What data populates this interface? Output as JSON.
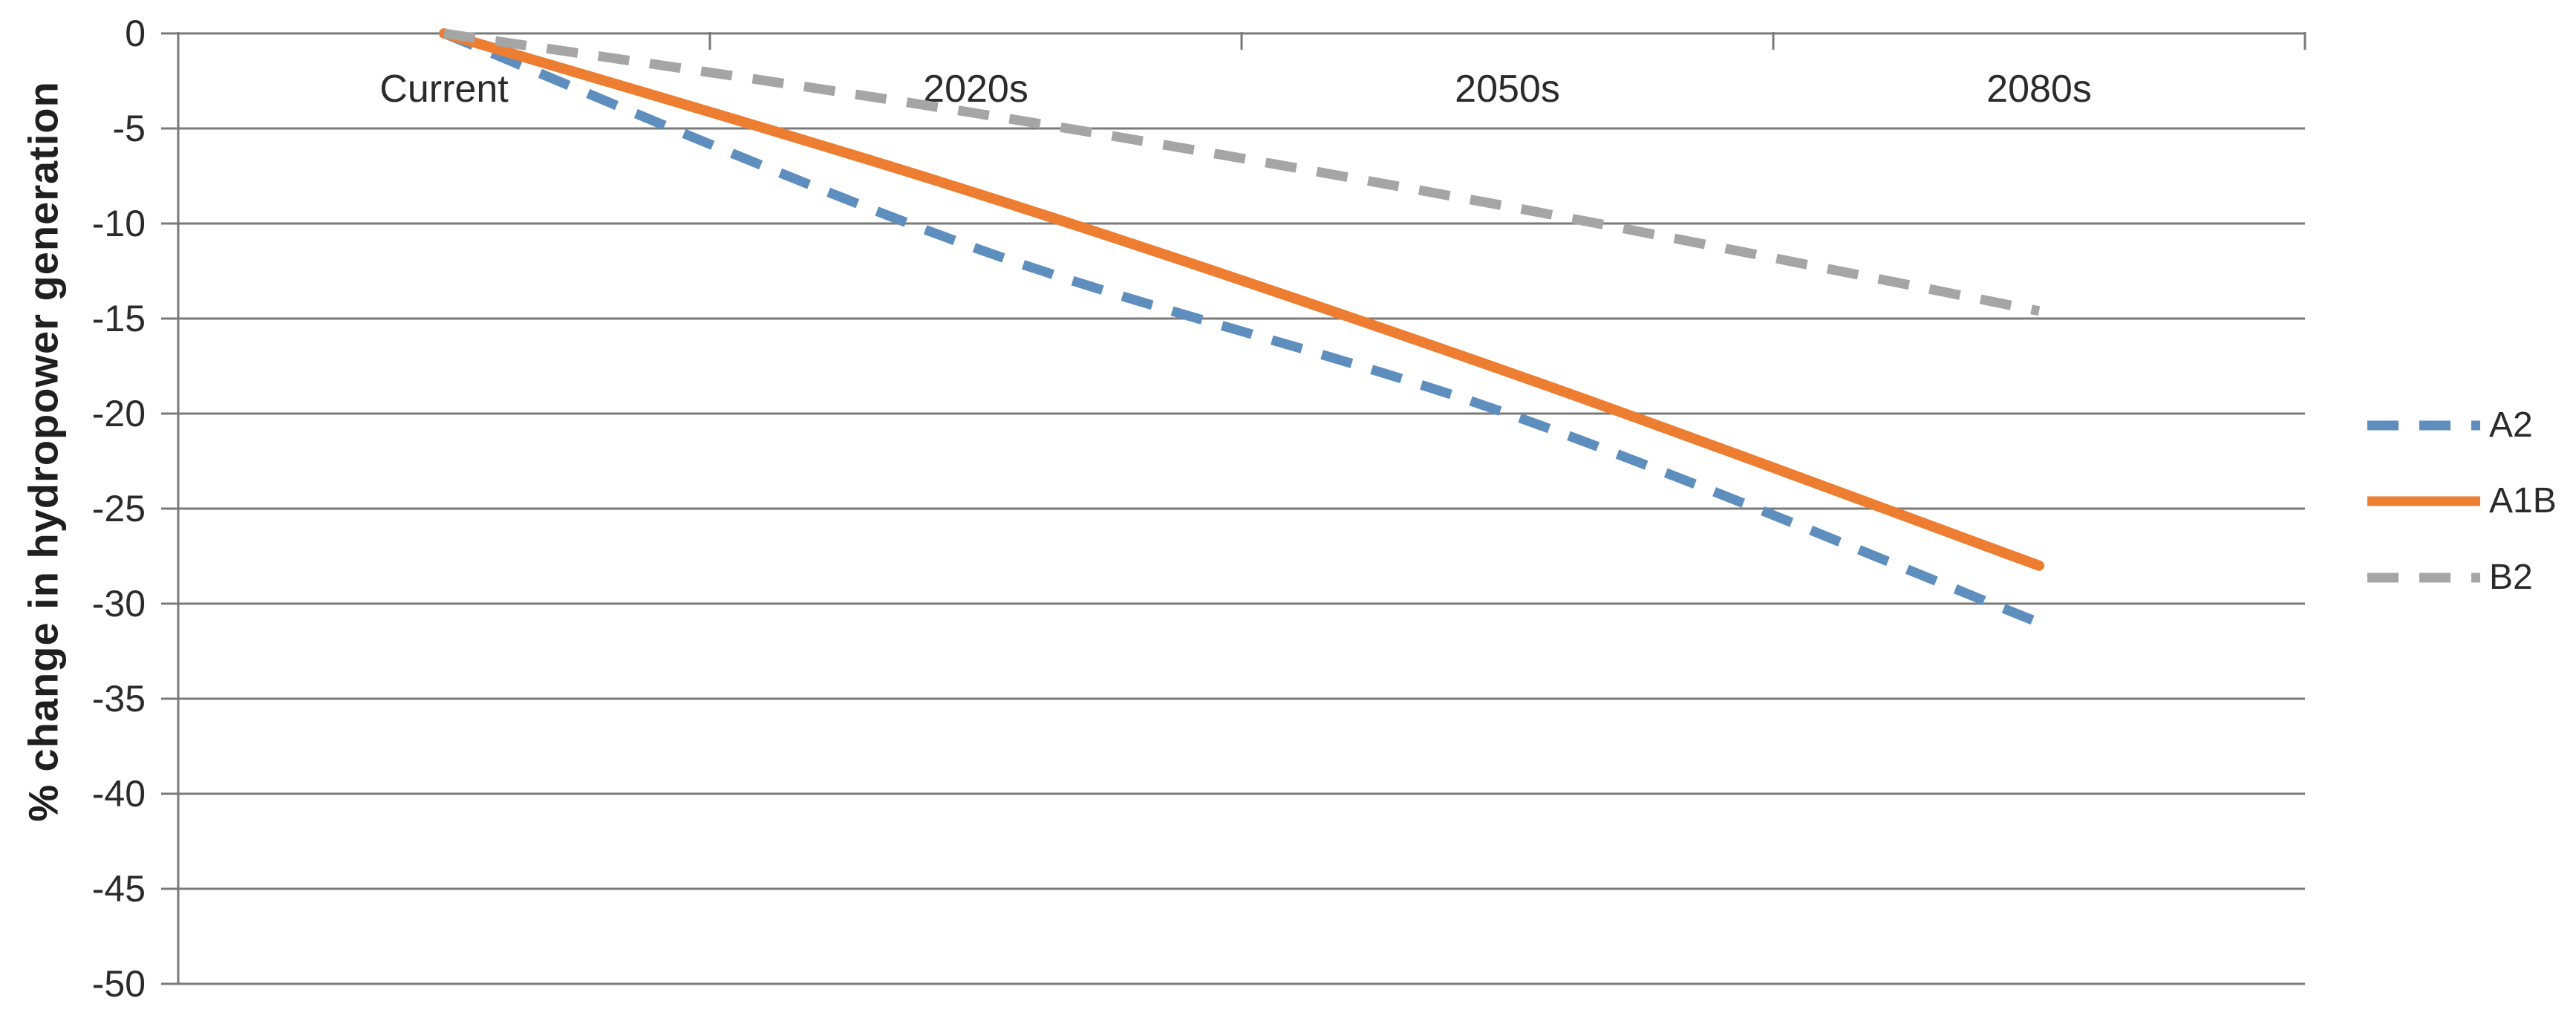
{
  "chart_data": {
    "type": "line",
    "title": "",
    "xlabel": "",
    "ylabel": "% change in hydropower generation",
    "categories": [
      "Current",
      "2020s",
      "2050s",
      "2080s"
    ],
    "series": [
      {
        "name": "A2",
        "values": [
          0,
          -11.3,
          -20,
          -31
        ],
        "color": "#5E8EBD",
        "line_style": "dashed"
      },
      {
        "name": "A1B",
        "values": [
          0,
          -8.4,
          -17.8,
          -28
        ],
        "color": "#ED7D31",
        "line_style": "solid"
      },
      {
        "name": "B2",
        "values": [
          0,
          -4.2,
          -9.1,
          -14.6
        ],
        "color": "#A5A5A5",
        "line_style": "dashed"
      }
    ],
    "ylim": [
      -50,
      0
    ],
    "ytick_step": 5,
    "yticks": [
      0,
      -5,
      -10,
      -15,
      -20,
      -25,
      -30,
      -35,
      -40,
      -45,
      -50
    ],
    "grid": "horizontal-only",
    "legend_position": "right-middle",
    "smoothed_lines": true
  },
  "style_colors": {
    "gridline": "#7a7a7a",
    "axis": "#7a7a7a",
    "tick_text": "#2b2b2b",
    "axis_title_text": "#1f1f1f",
    "legend_text": "#2b2b2b",
    "background": "#ffffff"
  }
}
